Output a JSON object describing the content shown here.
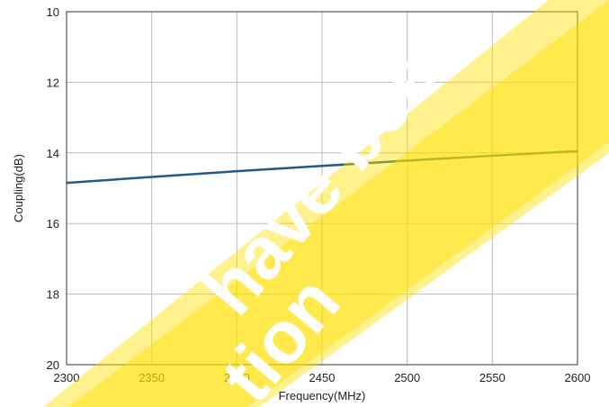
{
  "chart_data": {
    "type": "line",
    "title": "",
    "xlabel": "Frequency(MHz)",
    "ylabel": "Coupling(dB)",
    "xlim": [
      2300,
      2600
    ],
    "ylim": [
      10,
      20
    ],
    "y_inverted": true,
    "grid": true,
    "x_ticks": [
      "2300",
      "2350",
      "2400",
      "2450",
      "2500",
      "2550",
      "2600"
    ],
    "y_ticks": [
      "10",
      "12",
      "14",
      "16",
      "18",
      "20"
    ],
    "series": [
      {
        "color": "#1f5a8a",
        "x": [
          2300,
          2350,
          2400,
          2450,
          2500,
          2550,
          2600
        ],
        "y": [
          14.85,
          14.68,
          14.52,
          14.37,
          14.22,
          14.08,
          13.95
        ]
      }
    ]
  },
  "overlay": {
    "banner_color": "#ffe000",
    "watermark_text": [
      "have been",
      "tion"
    ]
  }
}
